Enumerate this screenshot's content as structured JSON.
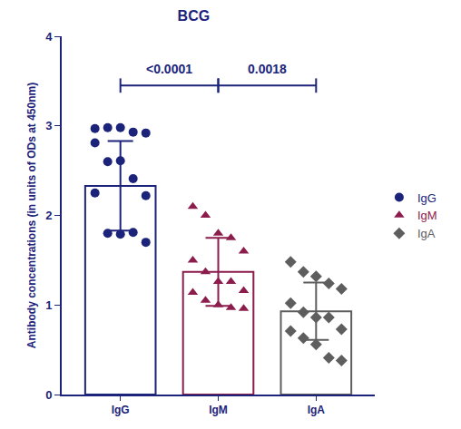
{
  "chart_data": {
    "type": "bar",
    "title": "BCG",
    "y_label": "Antibody concentrations (in units of ODs at 450nm)",
    "categories": [
      "IgG",
      "IgM",
      "IgA"
    ],
    "ylim": [
      0,
      4
    ],
    "yticks": [
      0,
      1,
      2,
      3,
      4
    ],
    "grid": false,
    "legend": "right",
    "series": [
      {
        "name": "IgG",
        "color": "#1c237a",
        "marker": "circle",
        "values": [
          2.33,
          null,
          null
        ],
        "error": [
          0.5,
          null,
          null
        ],
        "points": [
          2.97,
          2.98,
          2.98,
          2.93,
          2.92,
          2.81,
          2.6,
          2.61,
          2.41,
          2.22,
          2.25,
          1.8,
          1.79,
          1.81,
          1.7
        ]
      },
      {
        "name": "IgM",
        "color": "#8c1c4c",
        "marker": "triangle-up",
        "values": [
          null,
          1.37,
          null
        ],
        "error": [
          null,
          0.38,
          null
        ],
        "points": [
          2.1,
          2.0,
          1.8,
          1.75,
          1.6,
          1.5,
          1.37,
          1.26,
          1.26,
          1.16,
          1.14,
          1.05,
          1.0,
          0.97,
          0.96
        ]
      },
      {
        "name": "IgA",
        "color": "#5e5e5e",
        "marker": "diamond",
        "values": [
          null,
          null,
          0.93
        ],
        "error": [
          null,
          null,
          0.32
        ],
        "points": [
          1.48,
          1.37,
          1.32,
          1.24,
          1.18,
          1.02,
          0.92,
          0.86,
          0.86,
          0.73,
          0.71,
          0.63,
          0.56,
          0.41,
          0.38
        ]
      }
    ],
    "comparisons": [
      {
        "from": "IgG",
        "to": "IgM",
        "y": 3.45,
        "label": "<0.0001"
      },
      {
        "from": "IgM",
        "to": "IgA",
        "y": 3.45,
        "label": "0.0018"
      }
    ]
  }
}
